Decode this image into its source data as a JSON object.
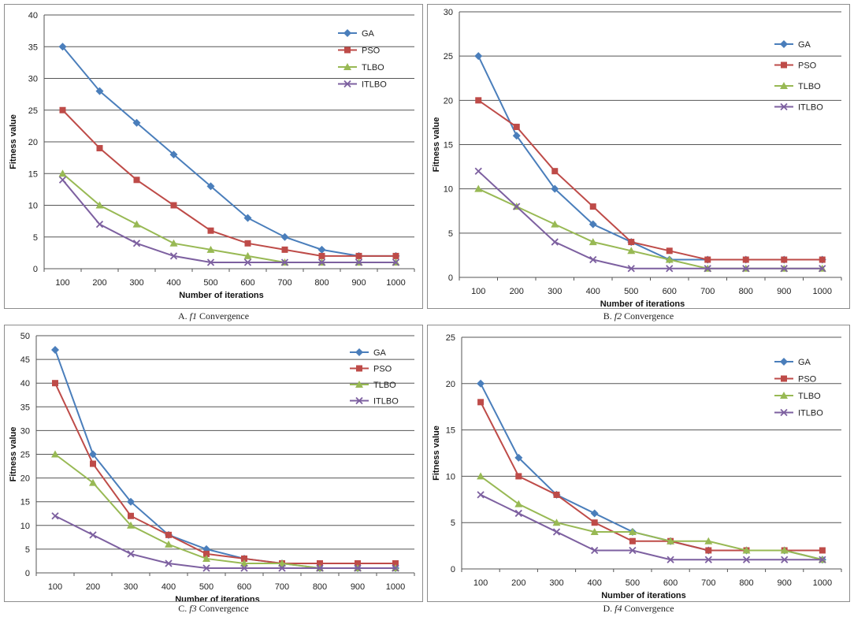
{
  "colors": {
    "GA": "#4a7ebb",
    "PSO": "#be4b48",
    "TLBO": "#98b954",
    "ITLBO": "#7d60a0",
    "grid": "#555555"
  },
  "chart_data": [
    {
      "type": "line",
      "caption_prefix": "A. ",
      "caption_fn": "f1",
      "caption_suffix": " Convergence",
      "xlabel": "Number  of iterations",
      "ylabel": "Fitness value",
      "categories": [
        "100",
        "200",
        "300",
        "400",
        "500",
        "600",
        "700",
        "800",
        "900",
        "1000"
      ],
      "ylim": [
        0,
        40
      ],
      "ystep": 5,
      "series": [
        {
          "name": "GA",
          "marker": "diamond",
          "values": [
            35,
            28,
            23,
            18,
            13,
            8,
            5,
            3,
            2,
            2
          ]
        },
        {
          "name": "PSO",
          "marker": "square",
          "values": [
            25,
            19,
            14,
            10,
            6,
            4,
            3,
            2,
            2,
            2
          ]
        },
        {
          "name": "TLBO",
          "marker": "triangle",
          "values": [
            15,
            10,
            7,
            4,
            3,
            2,
            1,
            1,
            1,
            1
          ]
        },
        {
          "name": "ITLBO",
          "marker": "x",
          "values": [
            14,
            7,
            4,
            2,
            1,
            1,
            1,
            1,
            1,
            1
          ]
        }
      ]
    },
    {
      "type": "line",
      "caption_prefix": "B. ",
      "caption_fn": "f2",
      "caption_suffix": " Convergence",
      "xlabel": "Number  of iterations",
      "ylabel": "Fitness value",
      "categories": [
        "100",
        "200",
        "300",
        "400",
        "500",
        "600",
        "700",
        "800",
        "900",
        "1000"
      ],
      "ylim": [
        0,
        30
      ],
      "ystep": 5,
      "series": [
        {
          "name": "GA",
          "marker": "diamond",
          "values": [
            25,
            16,
            10,
            6,
            4,
            2,
            2,
            2,
            2,
            2
          ]
        },
        {
          "name": "PSO",
          "marker": "square",
          "values": [
            20,
            17,
            12,
            8,
            4,
            3,
            2,
            2,
            2,
            2
          ]
        },
        {
          "name": "TLBO",
          "marker": "triangle",
          "values": [
            10,
            8,
            6,
            4,
            3,
            2,
            1,
            1,
            1,
            1
          ]
        },
        {
          "name": "ITLBO",
          "marker": "x",
          "values": [
            12,
            8,
            4,
            2,
            1,
            1,
            1,
            1,
            1,
            1
          ]
        }
      ]
    },
    {
      "type": "line",
      "caption_prefix": "C. ",
      "caption_fn": "f3",
      "caption_suffix": " Convergence",
      "xlabel": "Number  of iterations",
      "ylabel": "Fitness value",
      "categories": [
        "100",
        "200",
        "300",
        "400",
        "500",
        "600",
        "700",
        "800",
        "900",
        "1000"
      ],
      "ylim": [
        0,
        50
      ],
      "ystep": 5,
      "series": [
        {
          "name": "GA",
          "marker": "diamond",
          "values": [
            47,
            25,
            15,
            8,
            5,
            3,
            2,
            1,
            1,
            1
          ]
        },
        {
          "name": "PSO",
          "marker": "square",
          "values": [
            40,
            23,
            12,
            8,
            4,
            3,
            2,
            2,
            2,
            2
          ]
        },
        {
          "name": "TLBO",
          "marker": "triangle",
          "values": [
            25,
            19,
            10,
            6,
            3,
            2,
            2,
            1,
            1,
            1
          ]
        },
        {
          "name": "ITLBO",
          "marker": "x",
          "values": [
            12,
            8,
            4,
            2,
            1,
            1,
            1,
            1,
            1,
            1
          ]
        }
      ]
    },
    {
      "type": "line",
      "caption_prefix": "D. ",
      "caption_fn": "f4",
      "caption_suffix": " Convergence",
      "xlabel": "Number  of iterations",
      "ylabel": "Fitness value",
      "categories": [
        "100",
        "200",
        "300",
        "400",
        "500",
        "600",
        "700",
        "800",
        "900",
        "1000"
      ],
      "ylim": [
        0,
        25
      ],
      "ystep": 5,
      "series": [
        {
          "name": "GA",
          "marker": "diamond",
          "values": [
            20,
            12,
            8,
            6,
            4,
            3,
            2,
            2,
            2,
            1
          ]
        },
        {
          "name": "PSO",
          "marker": "square",
          "values": [
            18,
            10,
            8,
            5,
            3,
            3,
            2,
            2,
            2,
            2
          ]
        },
        {
          "name": "TLBO",
          "marker": "triangle",
          "values": [
            10,
            7,
            5,
            4,
            4,
            3,
            3,
            2,
            2,
            1
          ]
        },
        {
          "name": "ITLBO",
          "marker": "x",
          "values": [
            8,
            6,
            4,
            2,
            2,
            1,
            1,
            1,
            1,
            1
          ]
        }
      ]
    }
  ]
}
